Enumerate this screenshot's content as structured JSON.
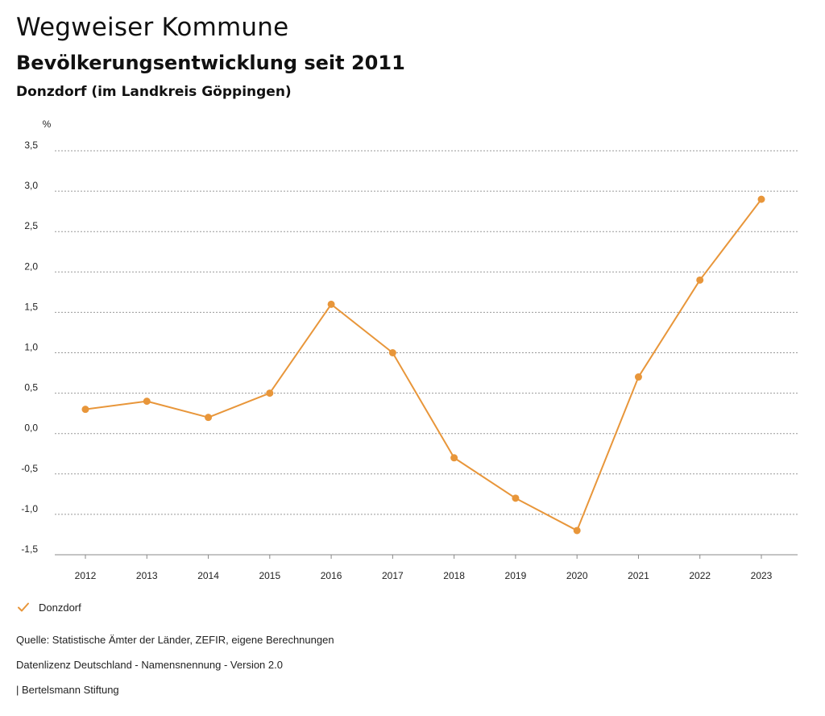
{
  "header": {
    "title": "Wegweiser Kommune",
    "subtitle": "Bevölkerungsentwicklung seit 2011",
    "region": "Donzdorf (im Landkreis Göppingen)"
  },
  "chart_data": {
    "type": "line",
    "ylabel": "%",
    "x": [
      "2012",
      "2013",
      "2014",
      "2015",
      "2016",
      "2017",
      "2018",
      "2019",
      "2020",
      "2021",
      "2022",
      "2023"
    ],
    "series": [
      {
        "name": "Donzdorf",
        "color": "#E8963A",
        "values": [
          0.3,
          0.4,
          0.2,
          0.5,
          1.6,
          1.0,
          -0.3,
          -0.8,
          -1.2,
          0.7,
          1.9,
          2.9
        ]
      }
    ],
    "ylim": [
      -1.5,
      3.5
    ],
    "yticks": [
      "3,5",
      "3,0",
      "2,5",
      "2,0",
      "1,5",
      "1,0",
      "0,5",
      "0,0",
      "-0,5",
      "-1,0",
      "-1,5"
    ],
    "grid": true,
    "legend": "bottom-left"
  },
  "legend": {
    "label": "Donzdorf",
    "icon": "check-icon"
  },
  "footer": {
    "source": "Quelle: Statistische Ämter der Länder, ZEFIR, eigene Berechnungen",
    "license": "Datenlizenz Deutschland - Namensnennung - Version 2.0",
    "publisher": "| Bertelsmann Stiftung"
  }
}
